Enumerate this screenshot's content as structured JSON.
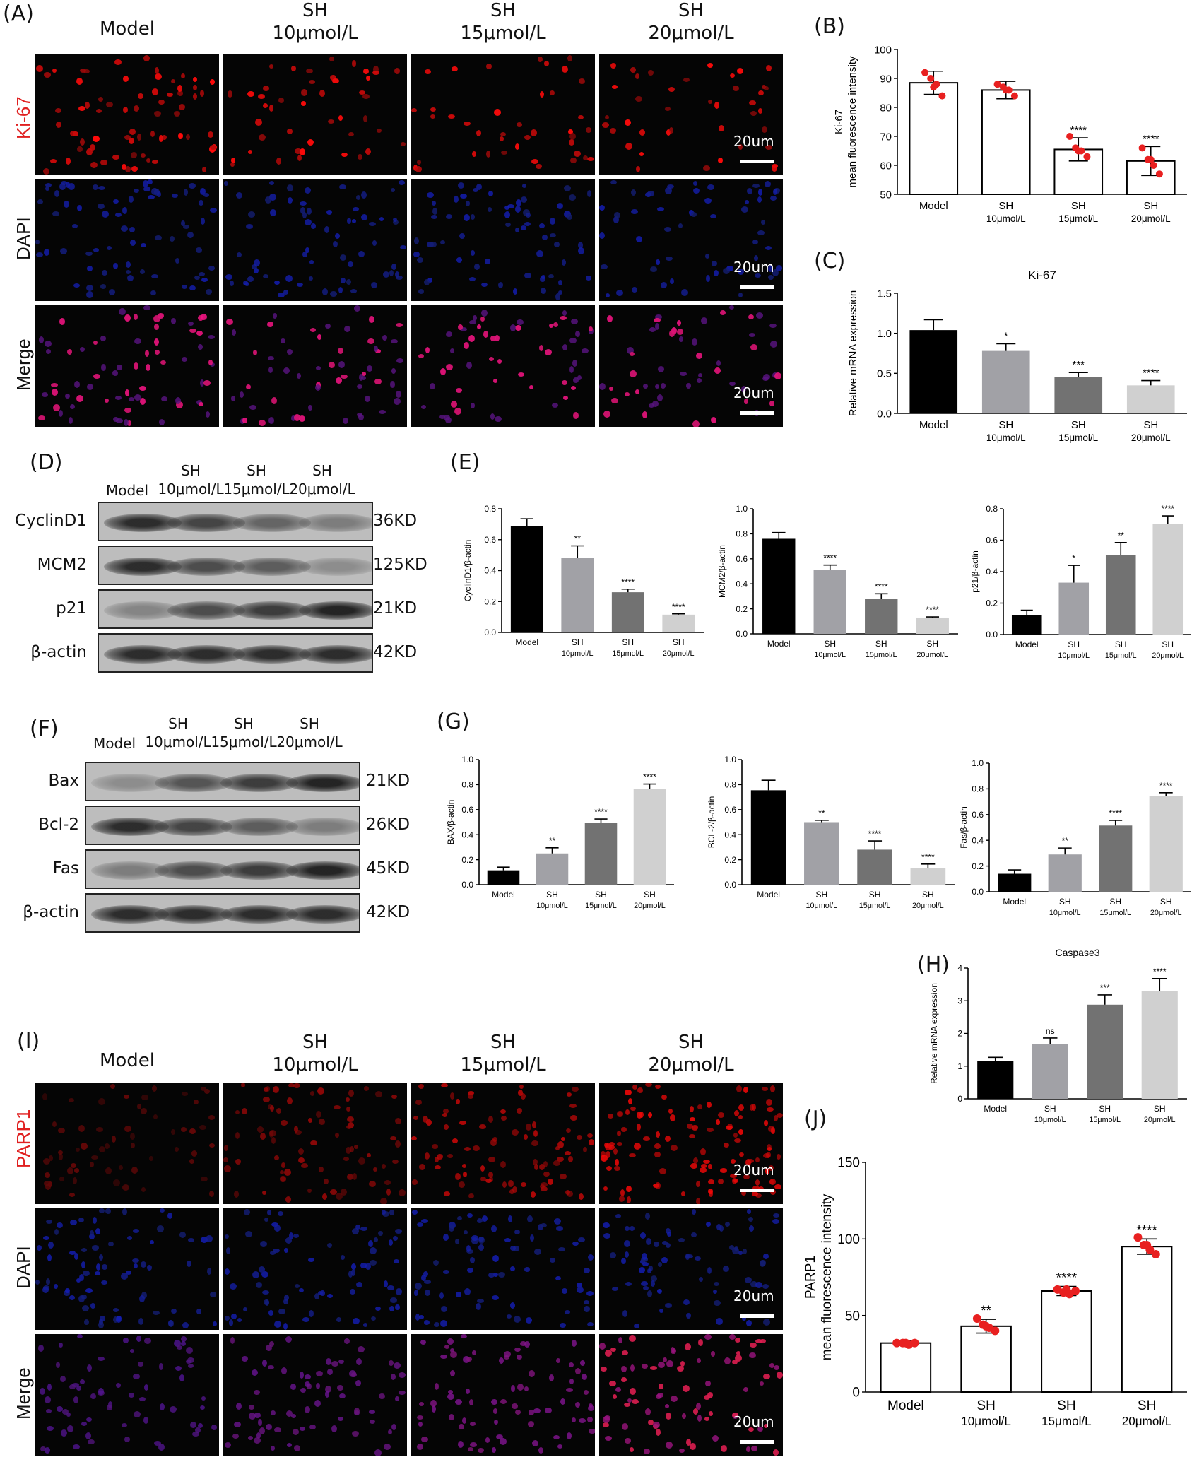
{
  "panels": {
    "A": "(A)",
    "B": "(B)",
    "C": "(C)",
    "D": "(D)",
    "E": "(E)",
    "F": "(F)",
    "G": "(G)",
    "H": "(H)",
    "I": "(I)",
    "J": "(J)"
  },
  "microscopy_top": {
    "col_headers": [
      {
        "line1": "Model",
        "line2": ""
      },
      {
        "line1": "SH",
        "line2": "10μmol/L"
      },
      {
        "line1": "SH",
        "line2": "15μmol/L"
      },
      {
        "line1": "SH",
        "line2": "20μmol/L"
      }
    ],
    "rows": [
      "Ki-67",
      "DAPI",
      "Merge"
    ],
    "scale": "20um"
  },
  "microscopy_bottom": {
    "col_headers": [
      {
        "line1": "Model",
        "line2": ""
      },
      {
        "line1": "SH",
        "line2": "10μmol/L"
      },
      {
        "line1": "SH",
        "line2": "15μmol/L"
      },
      {
        "line1": "SH",
        "line2": "20μmol/L"
      }
    ],
    "rows": [
      "PARP1",
      "DAPI",
      "Merge"
    ],
    "scale": "20um"
  },
  "blot_D": {
    "lanes": [
      {
        "line1": "Model",
        "line2": ""
      },
      {
        "line1": "SH",
        "line2": "10μmol/L"
      },
      {
        "line1": "SH",
        "line2": "15μmol/L"
      },
      {
        "line1": "SH",
        "line2": "20μmol/L"
      }
    ],
    "proteins": [
      {
        "name": "CyclinD1",
        "size": "36KD",
        "intensity": [
          0.9,
          0.75,
          0.55,
          0.4
        ]
      },
      {
        "name": "MCM2",
        "size": "125KD",
        "intensity": [
          0.9,
          0.7,
          0.6,
          0.3
        ]
      },
      {
        "name": "p21",
        "size": "21KD",
        "intensity": [
          0.35,
          0.7,
          0.8,
          0.95
        ]
      },
      {
        "name": "β-actin",
        "size": "42KD",
        "intensity": [
          0.9,
          0.9,
          0.9,
          0.9
        ]
      }
    ]
  },
  "blot_F": {
    "lanes": [
      {
        "line1": "Model",
        "line2": ""
      },
      {
        "line1": "SH",
        "line2": "10μmol/L"
      },
      {
        "line1": "SH",
        "line2": "15μmol/L"
      },
      {
        "line1": "SH",
        "line2": "20μmol/L"
      }
    ],
    "proteins": [
      {
        "name": "Bax",
        "size": "21KD",
        "intensity": [
          0.3,
          0.65,
          0.8,
          0.95
        ]
      },
      {
        "name": "Bcl-2",
        "size": "26KD",
        "intensity": [
          0.9,
          0.75,
          0.6,
          0.4
        ]
      },
      {
        "name": "Fas",
        "size": "45KD",
        "intensity": [
          0.4,
          0.7,
          0.8,
          0.95
        ]
      },
      {
        "name": "β-actin",
        "size": "42KD",
        "intensity": [
          0.9,
          0.9,
          0.9,
          0.9
        ]
      }
    ]
  },
  "chart_data": [
    {
      "id": "B",
      "type": "bar",
      "style": "dots",
      "ylabel": "Ki-67\nmean fluorescence intensity",
      "categories": [
        [
          "Model"
        ],
        [
          "SH",
          "10μmol/L"
        ],
        [
          "SH",
          "15μmol/L"
        ],
        [
          "SH",
          "20μmol/L"
        ]
      ],
      "values": [
        88.5,
        86,
        65.5,
        61.5
      ],
      "errors": [
        4,
        3,
        4,
        5
      ],
      "points": [
        [
          92,
          90,
          88,
          84,
          87
        ],
        [
          88,
          87,
          86,
          84,
          86
        ],
        [
          70,
          66,
          65,
          63,
          65
        ],
        [
          66,
          62,
          60,
          57,
          62
        ]
      ],
      "sig": [
        "",
        "",
        "****",
        "****"
      ],
      "ylim": [
        50,
        100
      ],
      "yticks": [
        50,
        60,
        70,
        80,
        90,
        100
      ],
      "colors": [
        "#ffffff",
        "#ffffff",
        "#ffffff",
        "#ffffff"
      ]
    },
    {
      "id": "C",
      "type": "bar",
      "style": "solid",
      "title": "Ki-67",
      "ylabel": "Relative mRNA expression",
      "categories": [
        [
          "Model"
        ],
        [
          "SH",
          "10μmol/L"
        ],
        [
          "SH",
          "15μmol/L"
        ],
        [
          "SH",
          "20μmol/L"
        ]
      ],
      "values": [
        1.04,
        0.78,
        0.45,
        0.35
      ],
      "errors": [
        0.13,
        0.09,
        0.06,
        0.06
      ],
      "sig": [
        "",
        "*",
        "***",
        "****"
      ],
      "ylim": [
        0,
        1.5
      ],
      "yticks": [
        0.0,
        0.5,
        1.0,
        1.5
      ],
      "colors": [
        "#000000",
        "#a1a1a6",
        "#727272",
        "#d0d0d0"
      ]
    },
    {
      "id": "E1",
      "type": "bar",
      "style": "solid",
      "ylabel": "CyclinD1/β-actin",
      "categories": [
        [
          "Model"
        ],
        [
          "SH",
          "10μmol/L"
        ],
        [
          "SH",
          "15μmol/L"
        ],
        [
          "SH",
          "20μmol/L"
        ]
      ],
      "values": [
        0.69,
        0.48,
        0.26,
        0.115
      ],
      "errors": [
        0.045,
        0.08,
        0.02,
        0.005
      ],
      "sig": [
        "",
        "**",
        "****",
        "****"
      ],
      "ylim": [
        0,
        0.8
      ],
      "yticks": [
        0.0,
        0.2,
        0.4,
        0.6,
        0.8
      ],
      "colors": [
        "#000000",
        "#a1a1a6",
        "#727272",
        "#d0d0d0"
      ]
    },
    {
      "id": "E2",
      "type": "bar",
      "style": "solid",
      "ylabel": "MCM2/β-actin",
      "categories": [
        [
          "Model"
        ],
        [
          "SH",
          "10μmol/L"
        ],
        [
          "SH",
          "15μmol/L"
        ],
        [
          "SH",
          "20μmol/L"
        ]
      ],
      "values": [
        0.76,
        0.51,
        0.28,
        0.13
      ],
      "errors": [
        0.05,
        0.04,
        0.04,
        0.005
      ],
      "sig": [
        "",
        "****",
        "****",
        "****"
      ],
      "ylim": [
        0,
        1.0
      ],
      "yticks": [
        0.0,
        0.2,
        0.4,
        0.6,
        0.8,
        1.0
      ],
      "colors": [
        "#000000",
        "#a1a1a6",
        "#727272",
        "#d0d0d0"
      ]
    },
    {
      "id": "E3",
      "type": "bar",
      "style": "solid",
      "ylabel": "p21/β-actin",
      "categories": [
        [
          "Model"
        ],
        [
          "SH",
          "10μmol/L"
        ],
        [
          "SH",
          "15μmol/L"
        ],
        [
          "SH",
          "20μmol/L"
        ]
      ],
      "values": [
        0.125,
        0.33,
        0.505,
        0.705
      ],
      "errors": [
        0.03,
        0.11,
        0.08,
        0.05
      ],
      "sig": [
        "",
        "*",
        "**",
        "****"
      ],
      "ylim": [
        0,
        0.8
      ],
      "yticks": [
        0.0,
        0.2,
        0.4,
        0.6,
        0.8
      ],
      "colors": [
        "#000000",
        "#a1a1a6",
        "#727272",
        "#d0d0d0"
      ]
    },
    {
      "id": "G1",
      "type": "bar",
      "style": "solid",
      "ylabel": "BAX/β-actin",
      "categories": [
        [
          "Model"
        ],
        [
          "SH",
          "10μmol/L"
        ],
        [
          "SH",
          "15μmol/L"
        ],
        [
          "SH",
          "20μmol/L"
        ]
      ],
      "values": [
        0.115,
        0.25,
        0.495,
        0.765
      ],
      "errors": [
        0.025,
        0.045,
        0.03,
        0.04
      ],
      "sig": [
        "",
        "**",
        "****",
        "****"
      ],
      "ylim": [
        0,
        1.0
      ],
      "yticks": [
        0.0,
        0.2,
        0.4,
        0.6,
        0.8,
        1.0
      ],
      "colors": [
        "#000000",
        "#a1a1a6",
        "#727272",
        "#d0d0d0"
      ]
    },
    {
      "id": "G2",
      "type": "bar",
      "style": "solid",
      "ylabel": "BCL-2/β-actin",
      "categories": [
        [
          "Model"
        ],
        [
          "SH",
          "10μmol/L"
        ],
        [
          "SH",
          "15μmol/L"
        ],
        [
          "SH",
          "20μmol/L"
        ]
      ],
      "values": [
        0.755,
        0.5,
        0.28,
        0.13
      ],
      "errors": [
        0.08,
        0.015,
        0.07,
        0.035
      ],
      "sig": [
        "",
        "**",
        "****",
        "****"
      ],
      "ylim": [
        0,
        1.0
      ],
      "yticks": [
        0.0,
        0.2,
        0.4,
        0.6,
        0.8,
        1.0
      ],
      "colors": [
        "#000000",
        "#a1a1a6",
        "#727272",
        "#d0d0d0"
      ]
    },
    {
      "id": "G3",
      "type": "bar",
      "style": "solid",
      "ylabel": "Fas/β-actin",
      "categories": [
        [
          "Model"
        ],
        [
          "SH",
          "10μmol/L"
        ],
        [
          "SH",
          "15μmol/L"
        ],
        [
          "SH",
          "20μmol/L"
        ]
      ],
      "values": [
        0.14,
        0.29,
        0.515,
        0.745
      ],
      "errors": [
        0.03,
        0.05,
        0.04,
        0.025
      ],
      "sig": [
        "",
        "**",
        "****",
        "****"
      ],
      "ylim": [
        0,
        1.0
      ],
      "yticks": [
        0.0,
        0.2,
        0.4,
        0.6,
        0.8,
        1.0
      ],
      "colors": [
        "#000000",
        "#a1a1a6",
        "#727272",
        "#d0d0d0"
      ]
    },
    {
      "id": "H",
      "type": "bar",
      "style": "solid",
      "title": "Caspase3",
      "ylabel": "Relative mRNA expression",
      "categories": [
        [
          "Model"
        ],
        [
          "SH",
          "10μmol/L"
        ],
        [
          "SH",
          "15μmol/L"
        ],
        [
          "SH",
          "20μmol/L"
        ]
      ],
      "values": [
        1.15,
        1.68,
        2.88,
        3.3
      ],
      "errors": [
        0.12,
        0.18,
        0.3,
        0.38
      ],
      "sig": [
        "",
        "ns",
        "***",
        "****"
      ],
      "ylim": [
        0,
        4
      ],
      "yticks": [
        0,
        1,
        2,
        3,
        4
      ],
      "colors": [
        "#000000",
        "#a1a1a6",
        "#727272",
        "#d0d0d0"
      ]
    },
    {
      "id": "J",
      "type": "bar",
      "style": "dots",
      "ylabel": "PARP1\nmean fluorescence intensity",
      "categories": [
        [
          "Model"
        ],
        [
          "SH",
          "10μmol/L"
        ],
        [
          "SH",
          "15μmol/L"
        ],
        [
          "SH",
          "20μmol/L"
        ]
      ],
      "values": [
        32,
        43,
        66,
        95
      ],
      "errors": [
        1.5,
        4.5,
        3,
        5
      ],
      "points": [
        [
          32,
          32,
          31,
          32,
          32
        ],
        [
          48,
          44,
          42,
          40,
          43
        ],
        [
          67,
          65,
          64,
          66,
          67
        ],
        [
          101,
          96,
          93,
          90,
          96
        ]
      ],
      "sig": [
        "",
        "**",
        "****",
        "****"
      ],
      "ylim": [
        0,
        150
      ],
      "yticks": [
        0,
        50,
        100,
        150
      ],
      "colors": [
        "#ffffff",
        "#ffffff",
        "#ffffff",
        "#ffffff"
      ]
    }
  ]
}
